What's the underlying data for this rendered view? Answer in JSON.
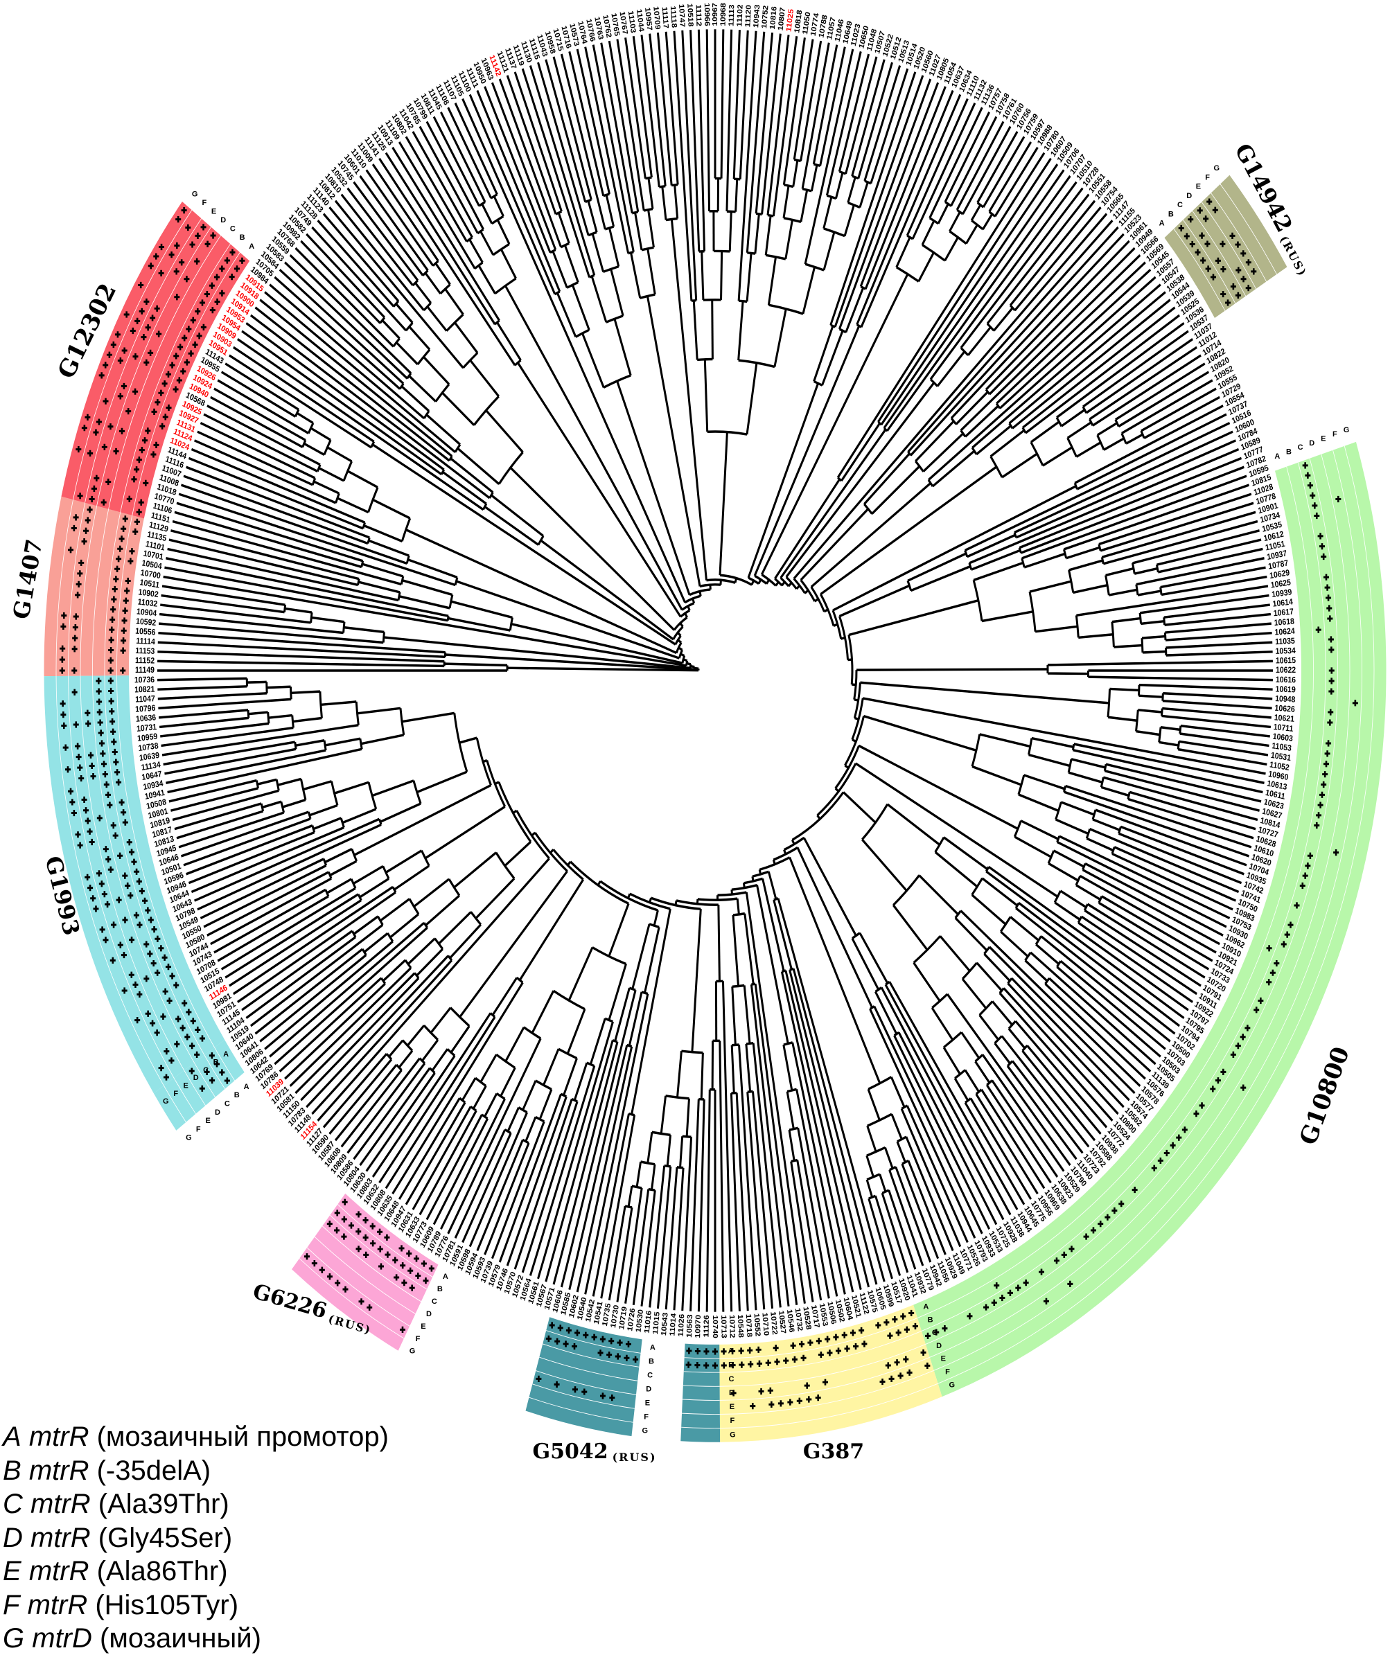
{
  "highlight_color": "#ff0000",
  "leaves": [
    "11149",
    "11152",
    "11153",
    "11114",
    "10556",
    "10592",
    "10904",
    "11032",
    "10902",
    "10511",
    "10700",
    "10504",
    "10701",
    "11101",
    "11135",
    "11129",
    "11151",
    "11106",
    "10770",
    "11018",
    "11008",
    "11007",
    "11116",
    "11144",
    "11024",
    "11124",
    "11131",
    "10927",
    "10925",
    "10568",
    "10940",
    "10924",
    "10926",
    "10955",
    "11143",
    "10951",
    "10903",
    "10909",
    "10954",
    "10953",
    "10914",
    "10900",
    "10918",
    "10915",
    "10984",
    "10705",
    "10584",
    "10583",
    "10559",
    "10768",
    "10982",
    "10582",
    "10749",
    "11128",
    "11123",
    "11140",
    "10812",
    "10810",
    "10532",
    "10745",
    "10601",
    "11010",
    "11009",
    "11141",
    "11125",
    "10913",
    "11109",
    "10802",
    "11042",
    "10785",
    "10799",
    "10811",
    "11045",
    "11108",
    "11107",
    "11105",
    "11100",
    "11111",
    "10950",
    "10963",
    "11142",
    "11121",
    "11137",
    "11119",
    "11130",
    "11115",
    "11043",
    "10958",
    "10715",
    "10716",
    "10573",
    "10764",
    "10766",
    "10763",
    "10762",
    "10765",
    "10767",
    "11103",
    "11044",
    "10957",
    "10709",
    "11117",
    "11118",
    "10747",
    "10518",
    "11112",
    "10966",
    "10967",
    "10968",
    "11113",
    "11102",
    "11120",
    "10943",
    "10752",
    "10816",
    "10807",
    "11025",
    "10818",
    "11050",
    "10774",
    "10788",
    "11057",
    "11046",
    "10649",
    "11023",
    "10650",
    "11048",
    "10507",
    "10522",
    "10512",
    "10513",
    "10514",
    "10520",
    "10560",
    "11027",
    "10805",
    "11054",
    "10637",
    "10634",
    "11110",
    "11132",
    "11136",
    "10757",
    "10758",
    "10761",
    "10760",
    "10756",
    "10759",
    "10597",
    "10988",
    "10780",
    "10607",
    "10509",
    "10706",
    "10707",
    "10510",
    "10728",
    "10551",
    "10558",
    "10754",
    "10565",
    "11147",
    "11155",
    "10523",
    "10961",
    "10949",
    "10566",
    "10569",
    "10545",
    "10557",
    "10547",
    "10538",
    "10544",
    "10539",
    "10525",
    "10536",
    "10537",
    "11037",
    "11012",
    "10714",
    "10822",
    "10820",
    "10952",
    "10555",
    "10729",
    "10554",
    "10737",
    "10516",
    "10600",
    "10784",
    "10589",
    "10777",
    "10782",
    "10595",
    "10815",
    "11028",
    "10778",
    "10901",
    "10734",
    "10535",
    "10612",
    "11051",
    "10937",
    "10787",
    "10629",
    "10625",
    "10939",
    "10614",
    "10617",
    "10618",
    "10624",
    "11035",
    "10534",
    "10615",
    "10622",
    "10616",
    "10619",
    "10948",
    "10626",
    "10621",
    "10711",
    "10603",
    "11053",
    "10531",
    "11052",
    "10960",
    "10613",
    "10611",
    "10623",
    "10627",
    "10814",
    "10727",
    "10628",
    "10610",
    "10620",
    "10704",
    "10935",
    "10742",
    "10741",
    "10750",
    "10983",
    "10753",
    "10930",
    "10962",
    "10910",
    "10921",
    "10724",
    "10733",
    "10720",
    "10791",
    "10911",
    "10922",
    "10797",
    "10795",
    "10794",
    "10702",
    "10500",
    "10703",
    "10503",
    "10505",
    "11139",
    "10576",
    "10578",
    "10577",
    "10574",
    "10562",
    "10800",
    "10524",
    "10772",
    "10938",
    "10588",
    "10792",
    "10723",
    "11040",
    "10790",
    "10529",
    "10923",
    "10638",
    "10969",
    "10956",
    "10775",
    "10645",
    "10944",
    "11038",
    "10928",
    "10725",
    "10533",
    "10933",
    "10793",
    "10526",
    "10771",
    "11049",
    "10929",
    "11056",
    "10942",
    "10779",
    "10932",
    "11041",
    "10920",
    "10517",
    "10599",
    "10605",
    "10575",
    "11122",
    "10521",
    "10604",
    "10502",
    "10506",
    "10553",
    "10717",
    "10528",
    "10732",
    "10546",
    "10527",
    "10722",
    "10710",
    "10552",
    "10718",
    "10548",
    "10712",
    "10713",
    "10740",
    "11126",
    "10970",
    "10563",
    "11026",
    "11014",
    "10543",
    "11015",
    "11016",
    "10530",
    "10726",
    "10719",
    "10730",
    "10735",
    "10541",
    "10542",
    "10540",
    "10602",
    "10585",
    "10606",
    "10571",
    "10567",
    "10561",
    "10564",
    "10572",
    "10570",
    "10746",
    "10579",
    "10739",
    "10593",
    "10594",
    "10598",
    "10591",
    "10781",
    "10776",
    "10789",
    "10609",
    "10773",
    "10633",
    "10631",
    "10947",
    "10648",
    "10635",
    "10808",
    "10632",
    "10803",
    "10630",
    "10804",
    "10586",
    "10809",
    "10608",
    "10587",
    "10590",
    "11127",
    "11154",
    "11148",
    "10783",
    "11150",
    "10581",
    "10721",
    "11039",
    "10786",
    "10769",
    "10642",
    "10806",
    "10641",
    "10640",
    "10519",
    "11104",
    "11145",
    "10751",
    "10981",
    "11146",
    "10748",
    "10515",
    "10708",
    "10743",
    "10744",
    "10580",
    "10550",
    "10549",
    "10798",
    "10643",
    "10644",
    "10946",
    "10596",
    "10501",
    "10646",
    "10945",
    "10813",
    "10817",
    "10819",
    "10801",
    "10508",
    "10941",
    "10934",
    "10647",
    "11134",
    "10639",
    "10738",
    "10959",
    "10731",
    "10636",
    "10796",
    "11047",
    "10821",
    "10736"
  ],
  "highlighted_leaves": [
    "11024",
    "11124",
    "11131",
    "10927",
    "10925",
    "10940",
    "10924",
    "10926",
    "10951",
    "10903",
    "10909",
    "10954",
    "10953",
    "10914",
    "10900",
    "10918",
    "10915",
    "11142",
    "11025",
    "11146",
    "11039",
    "11154"
  ],
  "ring_letters": [
    "A",
    "B",
    "C",
    "D",
    "E",
    "F",
    "G"
  ],
  "groups": [
    {
      "id": "g1407",
      "name": "G1407",
      "suffix": "",
      "color": "#f9a097",
      "start": "11149",
      "end": "11129",
      "marked_columns": [
        "A",
        "B",
        "E",
        "F"
      ]
    },
    {
      "id": "g12302",
      "name": "G12302",
      "suffix": "",
      "color": "#fa5c68",
      "start": "11151",
      "end": "10984",
      "marked_columns": [
        "A",
        "B",
        "D",
        "E",
        "F",
        "G"
      ]
    },
    {
      "id": "g14942",
      "name": "G14942",
      "suffix": "(RUS)",
      "color": "#b2b58a",
      "start": "10569",
      "end": "10537",
      "marked_columns": [
        "B",
        "C",
        "D",
        "E"
      ]
    },
    {
      "id": "g10800",
      "name": "G10800",
      "suffix": "",
      "color": "#b8f7aa",
      "start": "10815",
      "end": "11041",
      "marked_columns": [
        "B",
        "C",
        "E"
      ]
    },
    {
      "id": "g387",
      "name": "G387",
      "suffix": "",
      "color": "#fff5a3",
      "start": "10920",
      "end": "10713",
      "marked_columns": [
        "A",
        "B",
        "D",
        "E"
      ]
    },
    {
      "id": "g5042b",
      "name": "G5042",
      "suffix": "(RUS)",
      "color": "#4a9aa5",
      "start": "10740",
      "end": "10563",
      "marked_columns": [
        "A",
        "B"
      ]
    },
    {
      "id": "g5042a",
      "name": "G5042",
      "suffix": "(RUS)",
      "color": "#4a9aa5",
      "start": "10530",
      "end": "10606",
      "marked_columns": [
        "A",
        "B",
        "E"
      ]
    },
    {
      "id": "g6226",
      "name": "G6226",
      "suffix": "(RUS)",
      "color": "#fca6d6",
      "start": "10776",
      "end": "10630",
      "marked_columns": [
        "A",
        "B",
        "C",
        "F"
      ]
    },
    {
      "id": "g1993b",
      "name": "G1993",
      "suffix": "",
      "color": "#94e3e6",
      "start": "10806",
      "end": "10519",
      "marked_columns": [
        "B",
        "C",
        "D"
      ]
    },
    {
      "id": "g1993",
      "name": "G1993",
      "suffix": "",
      "color": "#94e3e6",
      "start": "11104",
      "end": "10736",
      "marked_columns": [
        "B",
        "C",
        "D",
        "E",
        "F"
      ]
    }
  ],
  "group_labels": [
    {
      "id": "g12302",
      "name": "G12302",
      "suffix": ""
    },
    {
      "id": "g1407",
      "name": "G1407",
      "suffix": ""
    },
    {
      "id": "g1993",
      "name": "G1993",
      "suffix": ""
    },
    {
      "id": "g6226",
      "name": "G6226",
      "suffix": "(RUS)"
    },
    {
      "id": "g5042",
      "name": "G5042",
      "suffix": "(RUS)"
    },
    {
      "id": "g387",
      "name": "G387",
      "suffix": ""
    },
    {
      "id": "g10800",
      "name": "G10800",
      "suffix": ""
    },
    {
      "id": "g14942",
      "name": "G14942",
      "suffix": "(RUS)"
    }
  ],
  "legend": [
    {
      "letter": "A",
      "gene": "mtrR",
      "desc": "(мозаичный промотор)"
    },
    {
      "letter": "B",
      "gene": "mtrR",
      "desc": "(-35delA)"
    },
    {
      "letter": "C",
      "gene": "mtrR",
      "desc": "(Ala39Thr)"
    },
    {
      "letter": "D",
      "gene": "mtrR",
      "desc": "(Gly45Ser)"
    },
    {
      "letter": "E",
      "gene": "mtrR",
      "desc": "(Ala86Thr)"
    },
    {
      "letter": "F",
      "gene": "mtrR",
      "desc": "(His105Tyr)"
    },
    {
      "letter": "G",
      "gene": "mtrD",
      "desc": "(мозаичный)"
    }
  ]
}
